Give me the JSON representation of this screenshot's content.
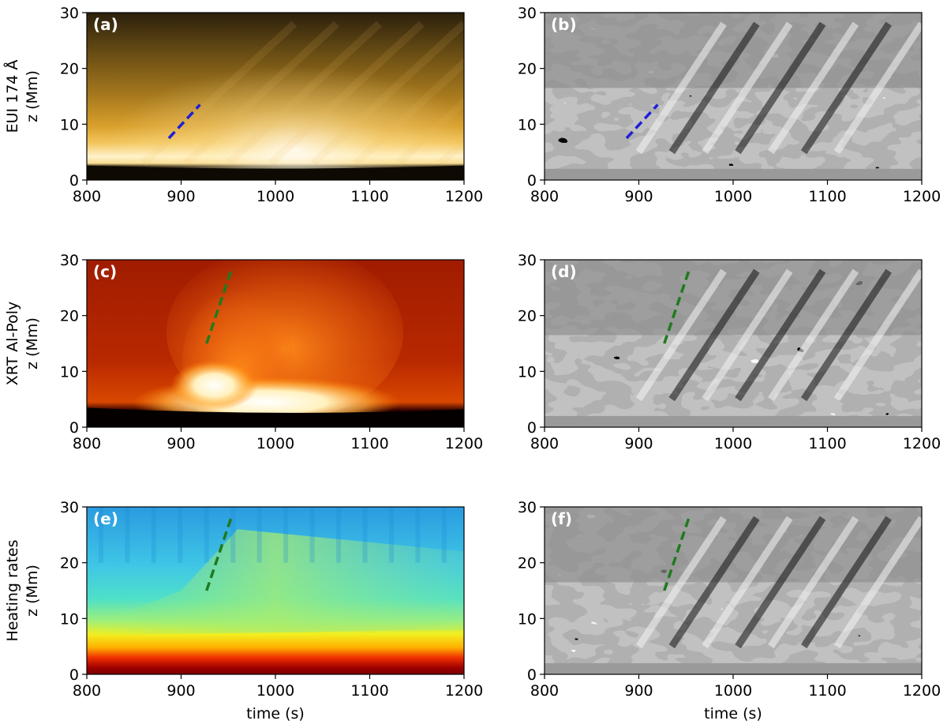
{
  "figure": {
    "x_ticks": [
      800,
      900,
      1000,
      1100,
      1200
    ],
    "y_ticks": [
      0,
      10,
      20,
      30
    ],
    "xlim": [
      800,
      1200
    ],
    "ylim": [
      0,
      30
    ],
    "xlabel": "time (s)",
    "ylabel_unit": "z (Mm)"
  },
  "chart_data": [
    {
      "type": "heatmap",
      "panel": "(a)",
      "row_label": "EUI 174 Å",
      "ylabel": "z (Mm)",
      "xlabel": "",
      "xlim": [
        800,
        1200
      ],
      "ylim": [
        0,
        30
      ],
      "colormap": "gold",
      "annotations": [
        {
          "style": "dashed",
          "color": "#1f1fd6",
          "x": [
            887,
            920
          ],
          "y": [
            7.5,
            13.5
          ]
        }
      ]
    },
    {
      "type": "heatmap",
      "panel": "(b)",
      "row_label": "",
      "ylabel": "",
      "xlabel": "",
      "xlim": [
        800,
        1200
      ],
      "ylim": [
        0,
        30
      ],
      "colormap": "gray",
      "annotations": [
        {
          "style": "dashed",
          "color": "#1f1fd6",
          "x": [
            887,
            920
          ],
          "y": [
            7.5,
            13.5
          ]
        }
      ]
    },
    {
      "type": "heatmap",
      "panel": "(c)",
      "row_label": "XRT Al-Poly",
      "ylabel": "z (Mm)",
      "xlabel": "",
      "xlim": [
        800,
        1200
      ],
      "ylim": [
        0,
        30
      ],
      "colormap": "hot",
      "annotations": [
        {
          "style": "dashed",
          "color": "#1f7a1f",
          "x": [
            927,
            953
          ],
          "y": [
            15,
            28
          ]
        }
      ]
    },
    {
      "type": "heatmap",
      "panel": "(d)",
      "row_label": "",
      "ylabel": "",
      "xlabel": "",
      "xlim": [
        800,
        1200
      ],
      "ylim": [
        0,
        30
      ],
      "colormap": "gray",
      "annotations": [
        {
          "style": "dashed",
          "color": "#1f7a1f",
          "x": [
            927,
            953
          ],
          "y": [
            15,
            28
          ]
        }
      ]
    },
    {
      "type": "heatmap",
      "panel": "(e)",
      "row_label": "Heating rates",
      "ylabel": "z (Mm)",
      "xlabel": "time (s)",
      "xlim": [
        800,
        1200
      ],
      "ylim": [
        0,
        30
      ],
      "colormap": "jet",
      "annotations": [
        {
          "style": "dashed",
          "color": "#1f7a1f",
          "x": [
            927,
            953
          ],
          "y": [
            15,
            28
          ]
        }
      ]
    },
    {
      "type": "heatmap",
      "panel": "(f)",
      "row_label": "",
      "ylabel": "",
      "xlabel": "time (s)",
      "xlim": [
        800,
        1200
      ],
      "ylim": [
        0,
        30
      ],
      "colormap": "gray",
      "annotations": [
        {
          "style": "dashed",
          "color": "#1f7a1f",
          "x": [
            927,
            953
          ],
          "y": [
            15,
            28
          ]
        }
      ]
    }
  ]
}
